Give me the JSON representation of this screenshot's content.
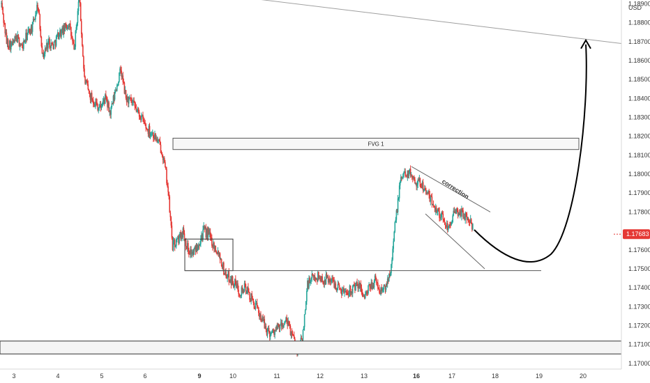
{
  "chart_data": {
    "type": "candlestick",
    "instrument_currency": "USD",
    "y_ticks": [
      "1.18900",
      "1.18800",
      "1.18700",
      "1.18600",
      "1.18500",
      "1.18400",
      "1.18300",
      "1.18200",
      "1.18100",
      "1.18000",
      "1.17900",
      "1.17800",
      "1.17683",
      "1.17600",
      "1.17500",
      "1.17400",
      "1.17300",
      "1.17200",
      "1.17100",
      "1.17000"
    ],
    "ylim": [
      1.1697,
      1.1892
    ],
    "x_ticks": [
      {
        "label": "3",
        "bold": false
      },
      {
        "label": "4",
        "bold": false
      },
      {
        "label": "5",
        "bold": false
      },
      {
        "label": "6",
        "bold": false
      },
      {
        "label": "9",
        "bold": true
      },
      {
        "label": "10",
        "bold": false
      },
      {
        "label": "11",
        "bold": false
      },
      {
        "label": "12",
        "bold": false
      },
      {
        "label": "13",
        "bold": false
      },
      {
        "label": "16",
        "bold": true
      },
      {
        "label": "17",
        "bold": false
      },
      {
        "label": "18",
        "bold": false
      },
      {
        "label": "19",
        "bold": false
      },
      {
        "label": "20",
        "bold": false
      }
    ],
    "current_price": "1.17683",
    "current_price_color": "#e53935",
    "up_color": "#26a69a",
    "down_color": "#e53935",
    "candle_x_range": [
      "3",
      "17"
    ],
    "close_path": [
      1.189,
      1.187,
      1.1868,
      1.1872,
      1.1867,
      1.1874,
      1.1878,
      1.189,
      1.1862,
      1.187,
      1.1868,
      1.1874,
      1.1876,
      1.188,
      1.1865,
      1.1894,
      1.185,
      1.1842,
      1.1838,
      1.1835,
      1.184,
      1.1832,
      1.1844,
      1.1855,
      1.184,
      1.1838,
      1.1834,
      1.183,
      1.1824,
      1.1822,
      1.1818,
      1.1812,
      1.1795,
      1.1762,
      1.1765,
      1.177,
      1.176,
      1.1758,
      1.1764,
      1.177,
      1.1768,
      1.1762,
      1.1758,
      1.1748,
      1.1745,
      1.1742,
      1.1738,
      1.174,
      1.1735,
      1.173,
      1.1725,
      1.1718,
      1.1716,
      1.1718,
      1.172,
      1.1722,
      1.1715,
      1.1708,
      1.1712,
      1.1742,
      1.1745,
      1.1746,
      1.1744,
      1.1745,
      1.1743,
      1.174,
      1.1738,
      1.1739,
      1.174,
      1.1741,
      1.1735,
      1.174,
      1.1744,
      1.1738,
      1.174,
      1.175,
      1.1776,
      1.1798,
      1.1801,
      1.18,
      1.1796,
      1.1795,
      1.179,
      1.1785,
      1.1781,
      1.1777,
      1.1772,
      1.1778,
      1.178,
      1.1779,
      1.1776,
      1.1772
    ],
    "fvg": {
      "label": "FVG 1",
      "top": 1.1819,
      "bottom": 1.1813,
      "from_x": "9",
      "to_x": "20"
    },
    "box_9_10": {
      "top": 1.17657,
      "bottom": 1.1749,
      "from_x": "9",
      "to_x": "10"
    },
    "support_line": {
      "value": 1.1749,
      "from_x": "9",
      "to_x": "18.5"
    },
    "demand_zone": {
      "top": 1.17118,
      "bottom": 1.1705
    },
    "trendline": {
      "from": {
        "x": "6",
        "y": 1.1894
      },
      "to": {
        "x": "20.9",
        "y": 1.1869
      }
    },
    "channel_upper": {
      "from": {
        "x": "16",
        "y": 1.1804
      },
      "to": {
        "x": "18",
        "y": 1.178
      }
    },
    "channel_lower": {
      "from": {
        "x": "16",
        "y": 1.1779
      },
      "to": {
        "x": "18",
        "y": 1.175
      }
    },
    "channel_label": "correction",
    "projection_end": 1.187
  }
}
